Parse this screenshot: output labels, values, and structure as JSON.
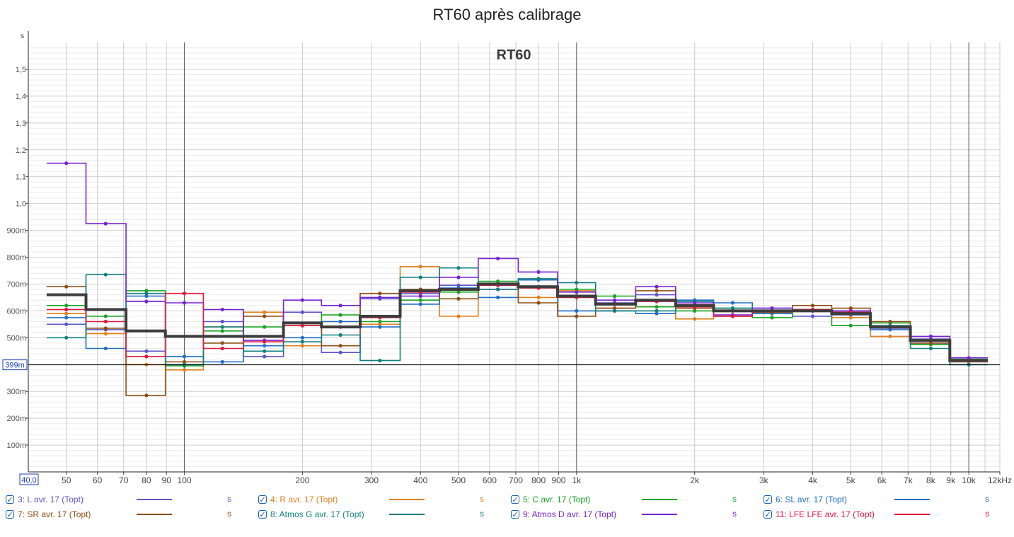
{
  "chart_data": {
    "type": "line",
    "title": "RT60 après calibrage",
    "subtitle": "RT60",
    "ylabel": "s",
    "xscale": "log",
    "xlim": [
      40,
      12000
    ],
    "ylim": [
      0,
      1.6
    ],
    "grid": true,
    "legend_position": "bottom",
    "cursor": {
      "y": 0.399,
      "label": "399m",
      "x_label": "40,0"
    },
    "y_ticks": [
      {
        "v": 0.1,
        "t": "100m"
      },
      {
        "v": 0.2,
        "t": "200m"
      },
      {
        "v": 0.3,
        "t": "300m"
      },
      {
        "v": 0.5,
        "t": "500m"
      },
      {
        "v": 0.6,
        "t": "600m"
      },
      {
        "v": 0.7,
        "t": "700m"
      },
      {
        "v": 0.8,
        "t": "800m"
      },
      {
        "v": 0.9,
        "t": "900m"
      },
      {
        "v": 1.0,
        "t": "1,0"
      },
      {
        "v": 1.1,
        "t": "1,1"
      },
      {
        "v": 1.2,
        "t": "1,2"
      },
      {
        "v": 1.3,
        "t": "1,3"
      },
      {
        "v": 1.4,
        "t": "1,4"
      },
      {
        "v": 1.5,
        "t": "1,5"
      }
    ],
    "x_ticks": [
      {
        "v": 50,
        "t": "50"
      },
      {
        "v": 60,
        "t": "60"
      },
      {
        "v": 70,
        "t": "70"
      },
      {
        "v": 80,
        "t": "80"
      },
      {
        "v": 90,
        "t": "90"
      },
      {
        "v": 100,
        "t": "100"
      },
      {
        "v": 200,
        "t": "200"
      },
      {
        "v": 300,
        "t": "300"
      },
      {
        "v": 400,
        "t": "400"
      },
      {
        "v": 500,
        "t": "500"
      },
      {
        "v": 600,
        "t": "600"
      },
      {
        "v": 700,
        "t": "700"
      },
      {
        "v": 800,
        "t": "800"
      },
      {
        "v": 900,
        "t": "900"
      },
      {
        "v": 1000,
        "t": "1k"
      },
      {
        "v": 2000,
        "t": "2k"
      },
      {
        "v": 3000,
        "t": "3k"
      },
      {
        "v": 4000,
        "t": "4k"
      },
      {
        "v": 5000,
        "t": "5k"
      },
      {
        "v": 6000,
        "t": "6k"
      },
      {
        "v": 7000,
        "t": "7k"
      },
      {
        "v": 8000,
        "t": "8k"
      },
      {
        "v": 9000,
        "t": "9k"
      },
      {
        "v": 10000,
        "t": "10k"
      },
      {
        "v": 12000,
        "t": "12kHz"
      }
    ],
    "x": [
      50,
      63,
      80,
      100,
      125,
      160,
      200,
      250,
      315,
      400,
      500,
      630,
      800,
      1000,
      1250,
      1600,
      2000,
      2500,
      3150,
      4000,
      5000,
      6300,
      8000,
      10000
    ],
    "average": {
      "color": "#3d3d3d",
      "values": [
        0.66,
        0.605,
        0.525,
        0.505,
        0.505,
        0.505,
        0.555,
        0.54,
        0.58,
        0.675,
        0.68,
        0.7,
        0.69,
        0.655,
        0.625,
        0.64,
        0.62,
        0.6,
        0.6,
        0.6,
        0.59,
        0.54,
        0.49,
        0.415
      ]
    },
    "series": [
      {
        "name": "3: L avr. 17 (Topt)",
        "unit": "s",
        "color": "#5b55c8",
        "values": [
          0.55,
          0.53,
          0.45,
          0.505,
          0.56,
          0.43,
          0.595,
          0.445,
          0.645,
          0.665,
          0.695,
          0.68,
          0.69,
          0.655,
          0.63,
          0.66,
          0.62,
          0.6,
          0.61,
          0.58,
          0.585,
          0.535,
          0.495,
          0.41
        ]
      },
      {
        "name": "4: R avr. 17 (Topt)",
        "unit": "s",
        "color": "#e0811f",
        "values": [
          0.59,
          0.515,
          0.4,
          0.38,
          0.54,
          0.595,
          0.47,
          0.56,
          0.55,
          0.765,
          0.58,
          0.7,
          0.65,
          0.675,
          0.61,
          0.615,
          0.57,
          0.58,
          0.6,
          0.6,
          0.575,
          0.505,
          0.475,
          0.41
        ]
      },
      {
        "name": "5: C avr. 17 (Topt)",
        "unit": "s",
        "color": "#1aa324",
        "values": [
          0.62,
          0.58,
          0.675,
          0.395,
          0.525,
          0.54,
          0.545,
          0.585,
          0.56,
          0.64,
          0.67,
          0.71,
          0.715,
          0.68,
          0.655,
          0.615,
          0.6,
          0.61,
          0.575,
          0.605,
          0.545,
          0.555,
          0.475,
          0.42
        ]
      },
      {
        "name": "6: SL avr. 17 (Topt)",
        "unit": "s",
        "color": "#1f6fc5",
        "values": [
          0.575,
          0.46,
          0.655,
          0.43,
          0.41,
          0.47,
          0.5,
          0.56,
          0.54,
          0.625,
          0.685,
          0.65,
          0.715,
          0.6,
          0.6,
          0.59,
          0.64,
          0.63,
          0.59,
          0.605,
          0.6,
          0.53,
          0.48,
          0.4
        ]
      },
      {
        "name": "7: SR avr. 17 (Topt)",
        "unit": "s",
        "color": "#8f4e14",
        "values": [
          0.69,
          0.535,
          0.285,
          0.41,
          0.48,
          0.58,
          0.545,
          0.47,
          0.665,
          0.68,
          0.645,
          0.7,
          0.63,
          0.58,
          0.61,
          0.675,
          0.61,
          0.6,
          0.595,
          0.62,
          0.61,
          0.56,
          0.48,
          0.415
        ]
      },
      {
        "name": "8: Atmos G avr. 17 (Topt)",
        "unit": "s",
        "color": "#138080",
        "values": [
          0.5,
          0.735,
          0.665,
          0.4,
          0.54,
          0.45,
          0.485,
          0.51,
          0.415,
          0.725,
          0.76,
          0.68,
          0.72,
          0.705,
          0.6,
          0.6,
          0.635,
          0.61,
          0.6,
          0.605,
          0.59,
          0.545,
          0.46,
          0.4
        ]
      },
      {
        "name": "9: Atmos D avr. 17 (Topt)",
        "unit": "s",
        "color": "#7624d3",
        "values": [
          1.15,
          0.925,
          0.635,
          0.63,
          0.605,
          0.49,
          0.64,
          0.62,
          0.65,
          0.655,
          0.725,
          0.795,
          0.745,
          0.67,
          0.64,
          0.69,
          0.63,
          0.585,
          0.61,
          0.6,
          0.6,
          0.54,
          0.505,
          0.425
        ]
      },
      {
        "name": "11: LFE LFE avr. 17 (Topt)",
        "unit": "s",
        "color": "#e3173d",
        "values": [
          0.605,
          0.56,
          0.43,
          0.665,
          0.46,
          0.485,
          0.545,
          0.54,
          0.575,
          0.67,
          0.68,
          0.695,
          0.685,
          0.65,
          0.625,
          0.635,
          0.615,
          0.58,
          0.6,
          0.605,
          0.595,
          0.54,
          0.49,
          0.415
        ]
      }
    ]
  }
}
